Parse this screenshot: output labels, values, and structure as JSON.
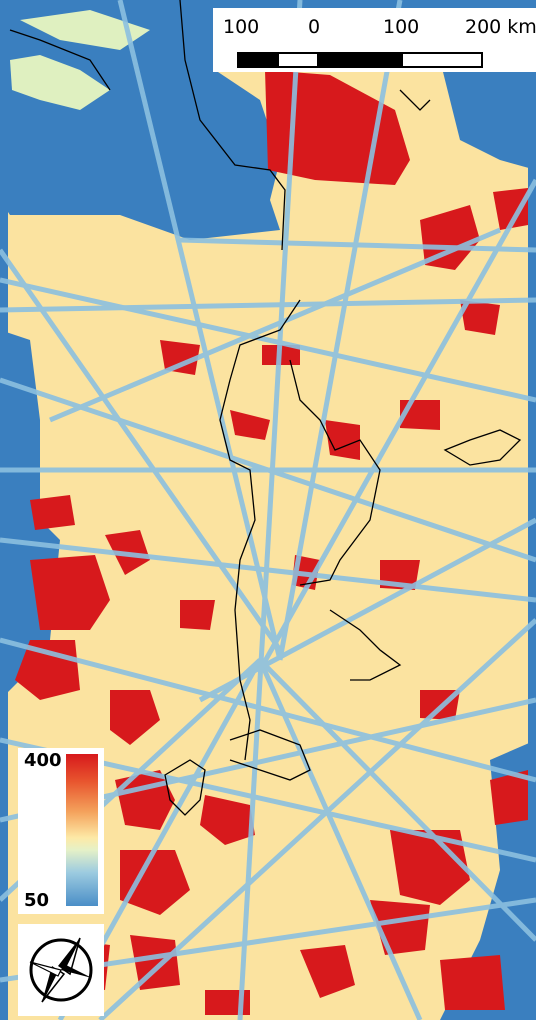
{
  "map": {
    "colors": {
      "high": "#d7191c",
      "mid": "#fde9a6",
      "low": "#3a7fbf",
      "track": "#8cc0e0",
      "coast": "#000000"
    }
  },
  "scalebar": {
    "labels": [
      "100",
      "0",
      "100",
      "200 km"
    ]
  },
  "legend": {
    "max_label": "400",
    "min_label": "50",
    "max_value": 400,
    "min_value": 50
  },
  "north_arrow": {
    "icon": "north-arrow-icon"
  }
}
